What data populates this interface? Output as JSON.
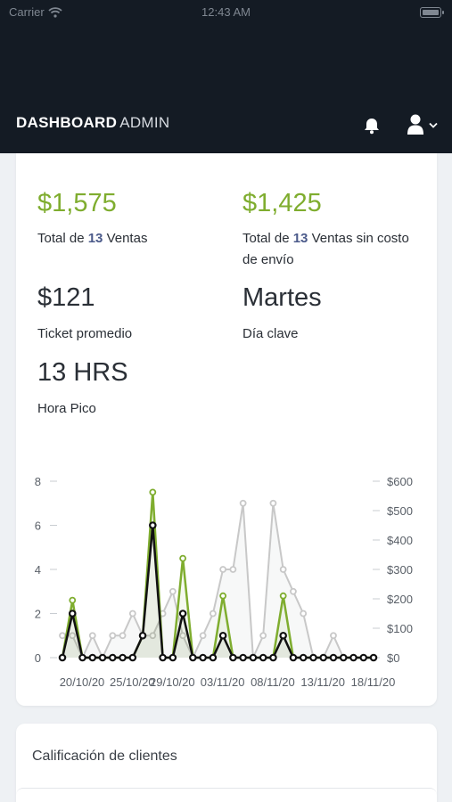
{
  "status_bar": {
    "carrier": "Carrier",
    "time": "12:43 AM"
  },
  "header": {
    "brand_bold": "DASHBOARD",
    "brand_light": "ADMIN",
    "bell_icon": "bell-icon",
    "user_icon": "user-icon",
    "chevron_icon": "chevron-down-icon"
  },
  "metrics": {
    "total_sales_value": "$1,575",
    "total_sales_pre": "Total de ",
    "total_sales_count": "13",
    "total_sales_post": " Ventas",
    "no_shipping_value": "$1,425",
    "no_shipping_pre": "Total de ",
    "no_shipping_count": "13",
    "no_shipping_post": " Ventas sin costo de envío",
    "avg_ticket_value": "$121",
    "avg_ticket_label": "Ticket promedio",
    "key_day_value": "Martes",
    "key_day_label": "Día clave",
    "peak_hour_value": "13 HRS",
    "peak_hour_label": "Hora Pico"
  },
  "colors": {
    "green": "#7fad2f",
    "gray": "#c8c8c8",
    "black": "#111111",
    "dark": "#141b24"
  },
  "chart_data": {
    "type": "line",
    "x": [
      "20/10/20",
      "21/10/20",
      "22/10/20",
      "23/10/20",
      "24/10/20",
      "25/10/20",
      "26/10/20",
      "27/10/20",
      "28/10/20",
      "29/10/20",
      "30/10/20",
      "31/10/20",
      "01/11/20",
      "02/11/20",
      "03/11/20",
      "04/11/20",
      "05/11/20",
      "06/11/20",
      "07/11/20",
      "08/11/20",
      "09/11/20",
      "10/11/20",
      "11/11/20",
      "12/11/20",
      "13/11/20",
      "14/11/20",
      "15/11/20",
      "16/11/20",
      "17/11/20",
      "18/11/20",
      "19/11/20",
      "20/11/20"
    ],
    "x_tick_labels": [
      "20/10/20",
      "25/10/20",
      "29/10/20",
      "03/11/20",
      "08/11/20",
      "13/11/20",
      "18/11/20"
    ],
    "x_tick_index": [
      0,
      5,
      9,
      14,
      19,
      24,
      29
    ],
    "y_left_ticks": [
      0,
      2,
      4,
      6,
      8
    ],
    "y_right_ticks": [
      "$0",
      "$100",
      "$200",
      "$300",
      "$400",
      "$500",
      "$600"
    ],
    "ylim_left": [
      0,
      8
    ],
    "ylim_right": [
      0,
      600
    ],
    "series": [
      {
        "axis": "right",
        "color": "#c8c8c8",
        "values": [
          75,
          75,
          0,
          75,
          0,
          75,
          75,
          150,
          75,
          75,
          150,
          225,
          75,
          0,
          75,
          150,
          300,
          300,
          525,
          0,
          75,
          525,
          300,
          225,
          150,
          0,
          0,
          75,
          0,
          0,
          0,
          0
        ]
      },
      {
        "axis": "left",
        "color": "#7fad2f",
        "values": [
          0,
          2.6,
          0,
          0,
          0,
          0,
          0,
          0,
          1,
          7.5,
          0,
          0,
          4.5,
          0,
          0,
          0,
          2.8,
          0,
          0,
          0,
          0,
          0,
          2.8,
          0,
          0,
          0,
          0,
          0,
          0,
          0,
          0,
          0
        ]
      },
      {
        "axis": "left",
        "color": "#111111",
        "values": [
          0,
          2,
          0,
          0,
          0,
          0,
          0,
          0,
          1,
          6,
          0,
          0,
          2,
          0,
          0,
          0,
          1,
          0,
          0,
          0,
          0,
          0,
          1,
          0,
          0,
          0,
          0,
          0,
          0,
          0,
          0,
          0
        ]
      }
    ]
  },
  "ratings_card": {
    "title": "Calificación de clientes"
  }
}
